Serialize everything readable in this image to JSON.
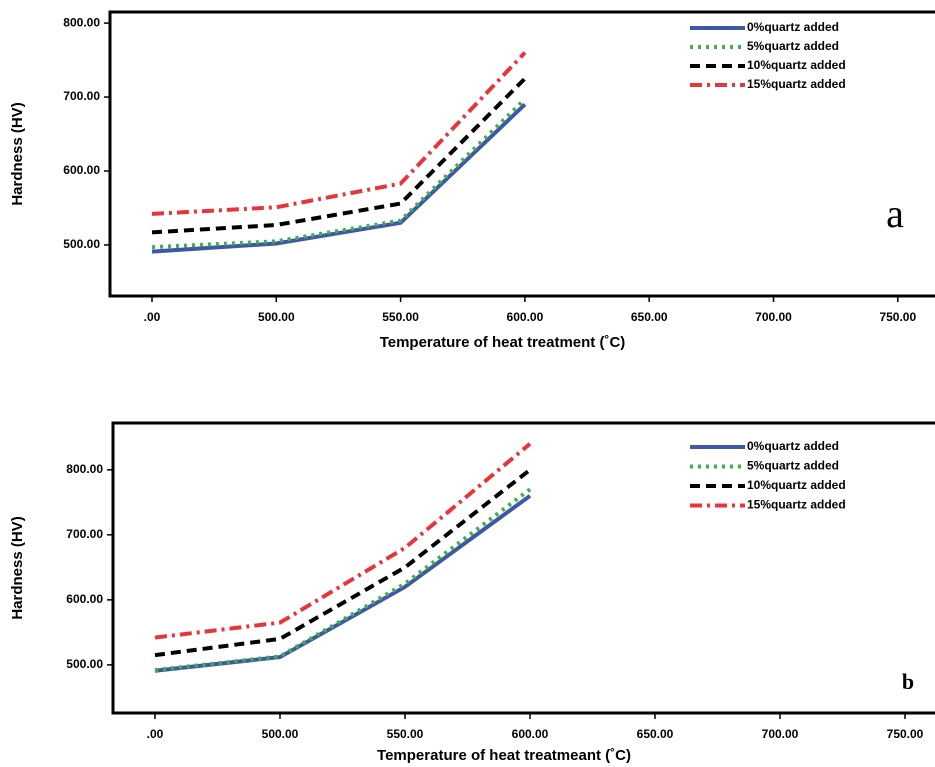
{
  "chart_data": [
    {
      "type": "line",
      "x_label": "Temperature of heat treatment (˚C)",
      "y_label": "Hardness (HV)",
      "annotation": "a",
      "categories": [
        ".00",
        "500.00",
        "550.00",
        "600.00",
        "650.00",
        "700.00",
        "750.00"
      ],
      "ylim": [
        431,
        815
      ],
      "yticks": [
        {
          "value": 500,
          "label": "500.00"
        },
        {
          "value": 600,
          "label": "600.00"
        },
        {
          "value": 700,
          "label": "700.00"
        },
        {
          "value": 800,
          "label": "800.00"
        }
      ],
      "series": [
        {
          "name": "0%quartz added",
          "color": "#3f57a6",
          "style": "solid",
          "values": [
            491,
            502,
            530,
            690,
            null,
            null,
            null
          ]
        },
        {
          "name": "5%quartz added",
          "color": "#3db04a",
          "style": "dotted",
          "values": [
            497,
            505,
            533,
            697,
            null,
            null,
            null
          ]
        },
        {
          "name": "10%quartz added",
          "color": "#000000",
          "style": "dashed",
          "values": [
            517,
            527,
            556,
            725,
            null,
            null,
            null
          ]
        },
        {
          "name": "15%quartz added",
          "color": "#e8343b",
          "style": "dashdot",
          "values": [
            542,
            551,
            583,
            760,
            null,
            null,
            null
          ]
        }
      ]
    },
    {
      "type": "line",
      "x_label": "Temperature of heat treatmeant (˚C)",
      "y_label": "Hardness (HV)",
      "annotation": "b",
      "categories": [
        ".00",
        "500.00",
        "550.00",
        "600.00",
        "650.00",
        "700.00",
        "750.00"
      ],
      "ylim": [
        426,
        872
      ],
      "yticks": [
        {
          "value": 500,
          "label": "500.00"
        },
        {
          "value": 600,
          "label": "600.00"
        },
        {
          "value": 700,
          "label": "700.00"
        },
        {
          "value": 800,
          "label": "800.00"
        }
      ],
      "series": [
        {
          "name": "0%quartz added",
          "color": "#3f57a6",
          "style": "solid",
          "values": [
            491,
            512,
            620,
            760,
            null,
            null,
            null
          ]
        },
        {
          "name": "5%quartz added",
          "color": "#3db04a",
          "style": "dotted",
          "values": [
            492,
            513,
            625,
            770,
            null,
            null,
            null
          ]
        },
        {
          "name": "10%quartz added",
          "color": "#000000",
          "style": "dashed",
          "values": [
            515,
            540,
            650,
            800,
            null,
            null,
            null
          ]
        },
        {
          "name": "15%quartz added",
          "color": "#e8343b",
          "style": "dashdot",
          "values": [
            542,
            565,
            680,
            840,
            null,
            null,
            null
          ]
        }
      ]
    }
  ]
}
